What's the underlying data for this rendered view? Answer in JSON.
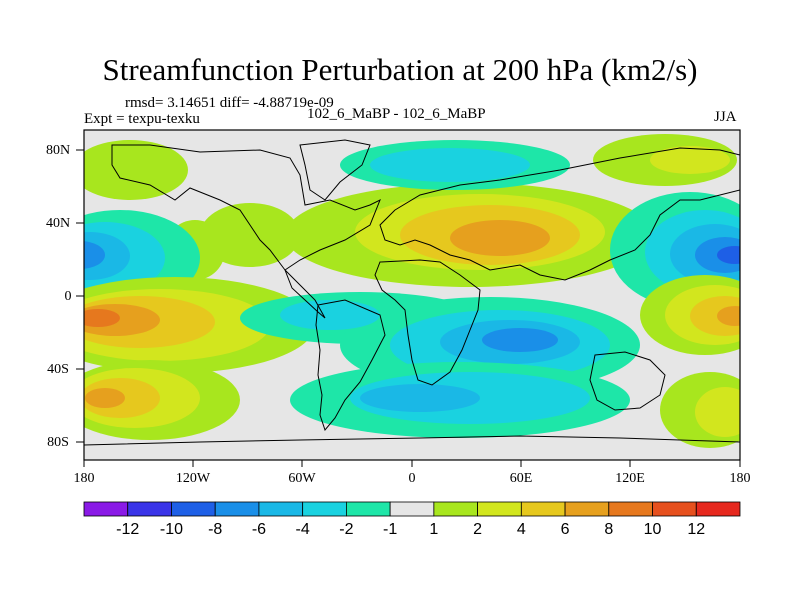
{
  "title": "Streamfunction Perturbation at 200 hPa (km2/s)",
  "stats": "rmsd= 3.14651 diff= -4.88719e-09",
  "expt": "Expt = texpu-texku",
  "case": "102_6_MaBP - 102_6_MaBP",
  "season": "JJA",
  "lat_labels": [
    "80N",
    "40N",
    "0",
    "40S",
    "80S"
  ],
  "lon_labels": [
    "180",
    "120W",
    "60W",
    "0",
    "60E",
    "120E",
    "180"
  ],
  "colorbar": {
    "labels": [
      "-12",
      "-10",
      "-8",
      "-6",
      "-4",
      "-2",
      "-1",
      "1",
      "2",
      "4",
      "6",
      "8",
      "10",
      "12"
    ],
    "colors": [
      "#8a1ae6",
      "#3a34e8",
      "#1e5fe6",
      "#1a8fe8",
      "#1ab8e6",
      "#1ad2e0",
      "#1ee6a8",
      "#e6e6e6",
      "#a8e61e",
      "#d2e61e",
      "#e6c81e",
      "#e6a01e",
      "#e6781e",
      "#e6501e",
      "#e6281e"
    ]
  },
  "colors": {
    "neutral": "#e6e6e6",
    "coastline": "#000000"
  }
}
